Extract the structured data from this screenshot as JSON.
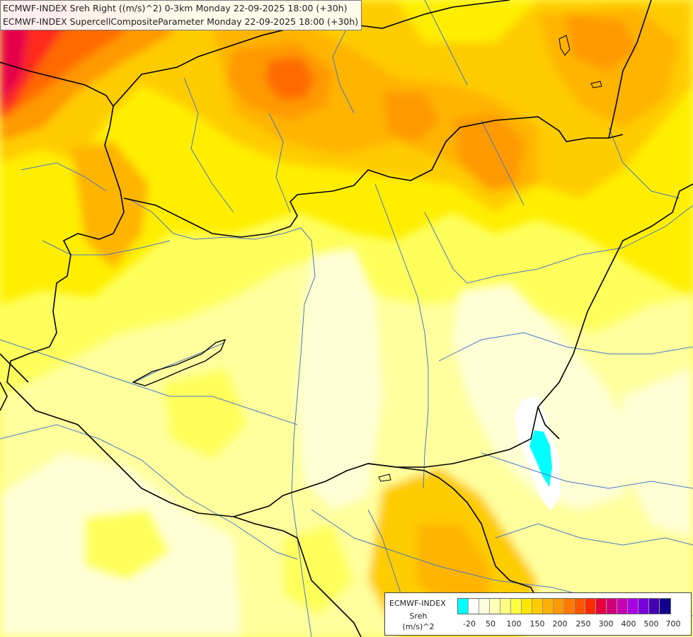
{
  "header": {
    "line1": "ECMWF-INDEX Sreh Right ((m/s)^2) 0-3km Monday 22-09-2025 18:00 (+30h)",
    "line2": "ECMWF-INDEX SupercellCompositeParameter Monday 22-09-2025 18:00 (+30h)"
  },
  "legend": {
    "name": "ECMWF-INDEX",
    "parameter": "Sreh",
    "unit": "(m/s)^2",
    "colors": [
      "#00ffff",
      "#ffffff",
      "#ffffe0",
      "#ffffb8",
      "#ffff80",
      "#ffff40",
      "#ffe600",
      "#ffcc00",
      "#ffb000",
      "#ff9900",
      "#ff7a00",
      "#ff5500",
      "#ff2a00",
      "#e6003c",
      "#d20078",
      "#c800b4",
      "#aa00e6",
      "#7800dc",
      "#4600b4",
      "#14008c"
    ],
    "tick_labels": [
      "-20",
      "50",
      "100",
      "150",
      "200",
      "250",
      "300",
      "400",
      "500",
      "700"
    ]
  },
  "map_colors": {
    "very_pale": "#ffffd6",
    "pale": "#ffff9e",
    "light": "#ffff5c",
    "yellow": "#ffee00",
    "gold": "#ffcc00",
    "amber": "#ffb400",
    "orange": "#ff9900",
    "dark_orange": "#ff6a00",
    "red": "#ff2a1a",
    "crimson": "#e6004a",
    "magenta": "#d0107a",
    "cyan": "#00ffff",
    "white": "#ffffff",
    "border": "#000000",
    "river": "#4a78c8"
  }
}
